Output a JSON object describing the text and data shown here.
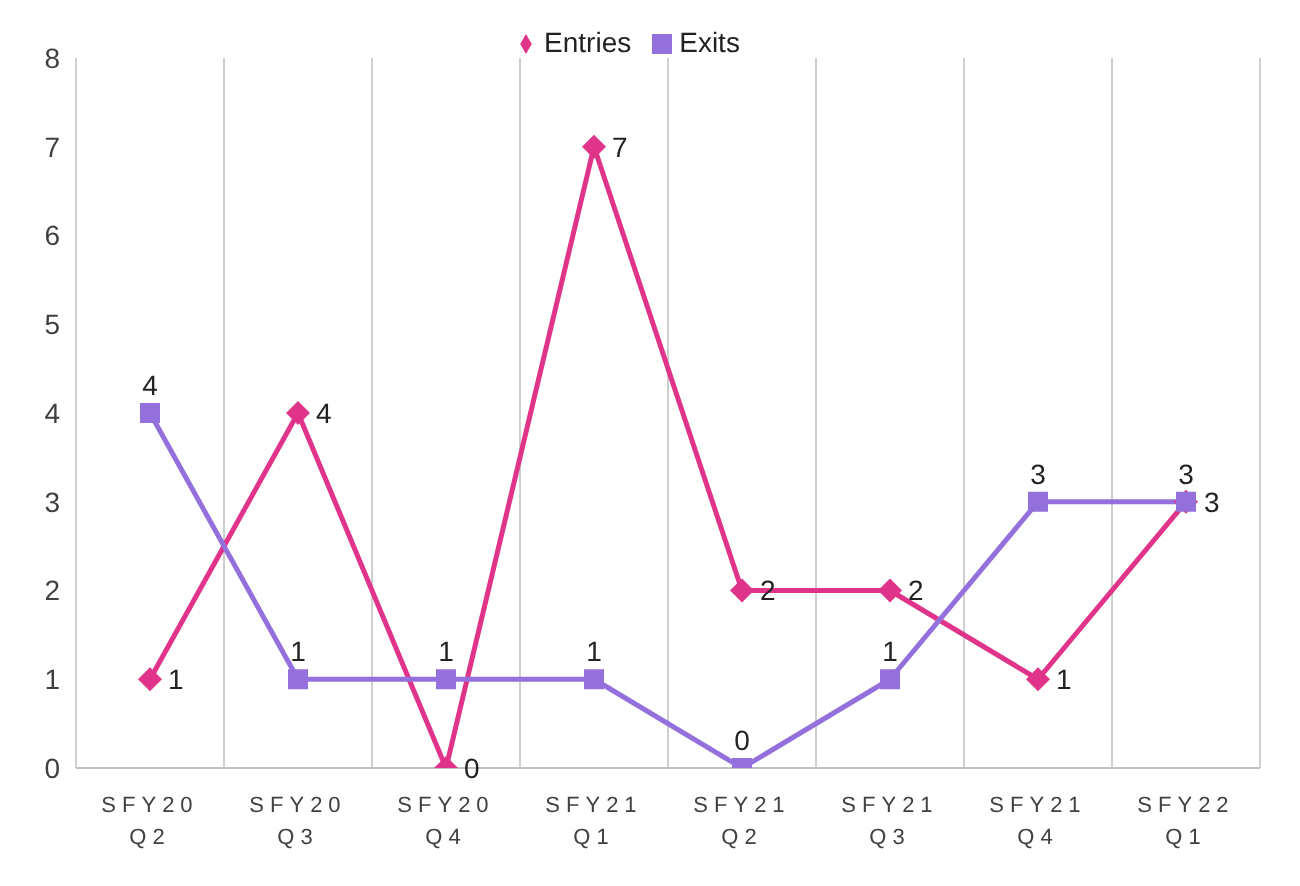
{
  "chart_data": {
    "type": "line",
    "categories": [
      "SFY20 Q2",
      "SFY20 Q3",
      "SFY20 Q4",
      "SFY21 Q1",
      "SFY21 Q2",
      "SFY21 Q3",
      "SFY21 Q4",
      "SFY22 Q1"
    ],
    "series": [
      {
        "name": "Entries",
        "color": "#e0338a",
        "values": [
          1,
          4,
          0,
          7,
          2,
          2,
          1,
          3
        ],
        "marker": "diamond"
      },
      {
        "name": "Exits",
        "color": "#9370db",
        "values": [
          4,
          1,
          1,
          1,
          0,
          1,
          3,
          3
        ],
        "marker": "square"
      }
    ],
    "ylim": [
      0,
      8
    ],
    "yticks": [
      0,
      1,
      2,
      3,
      4,
      5,
      6,
      7,
      8
    ],
    "grid": "x",
    "legend": "top",
    "data_labels": true
  }
}
